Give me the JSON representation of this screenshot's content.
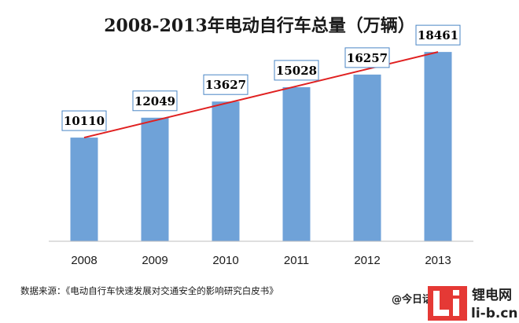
{
  "chart_data": {
    "type": "bar",
    "title": "2008-2013年电动自行车总量（万辆）",
    "categories": [
      "2008",
      "2009",
      "2010",
      "2011",
      "2012",
      "2013"
    ],
    "values": [
      10110,
      12049,
      13627,
      15028,
      16257,
      18461
    ],
    "ylim": [
      0,
      21000
    ],
    "grid": false,
    "trendline": true,
    "colors": {
      "bar": "#6fa2d8",
      "trend": "#e02020",
      "label_border": "#4a86c5"
    }
  },
  "source": "数据来源：《电动自行车快速发展对交通安全的影响研究白皮书》",
  "watermark": {
    "handle": "@今日话题制图",
    "site_cn": "锂电网",
    "site_url": "li-b.cn"
  }
}
